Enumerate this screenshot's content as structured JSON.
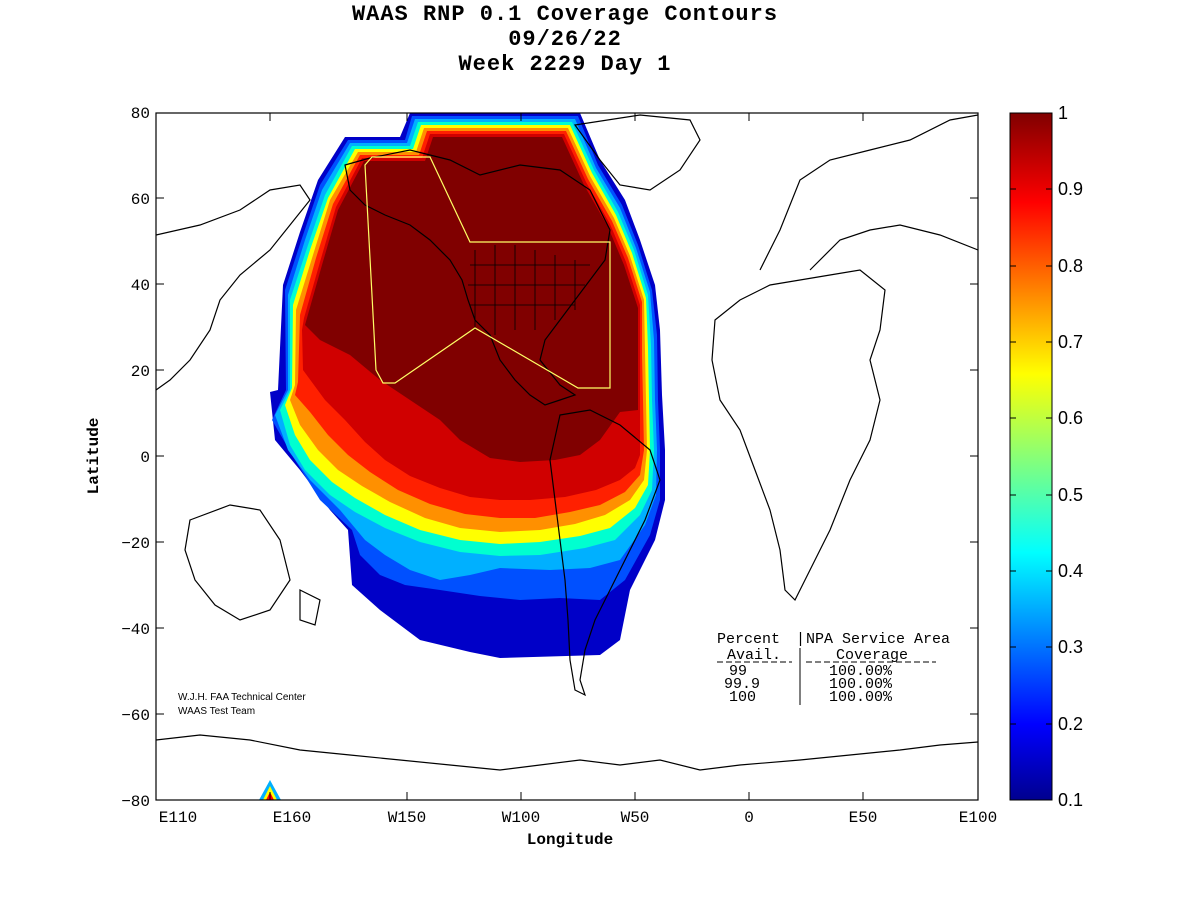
{
  "title": {
    "line1": "WAAS RNP 0.1 Coverage Contours",
    "line2": "09/26/22",
    "line3": "Week 2229 Day 1"
  },
  "axes": {
    "xlabel": "Longitude",
    "ylabel": "Latitude",
    "x_ticks": [
      "E110",
      "E160",
      "W150",
      "W100",
      "W50",
      "0",
      "E50",
      "E100"
    ],
    "y_ticks": [
      "80",
      "60",
      "40",
      "20",
      "0",
      "−20",
      "−40",
      "−60",
      "−80"
    ]
  },
  "colorbar": {
    "ticks": [
      "1",
      "0.9",
      "0.8",
      "0.7",
      "0.6",
      "0.5",
      "0.4",
      "0.3",
      "0.2",
      "0.1"
    ],
    "colormap": "jet",
    "range": [
      0.1,
      1
    ]
  },
  "credit": {
    "line1": "W.J.H. FAA Technical Center",
    "line2": "WAAS Test Team"
  },
  "table": {
    "header_col1": "Percent",
    "header_col2": "NPA Service Area",
    "sub_col1": "Avail.",
    "sub_col2": "Coverage",
    "rows": [
      {
        "avail": "99",
        "coverage": "100.00%"
      },
      {
        "avail": "99.9",
        "coverage": "100.00%"
      },
      {
        "avail": "100",
        "coverage": "100.00%"
      }
    ]
  },
  "colors": {
    "dark_red": "#800000",
    "red": "#ff0000",
    "orange": "#ff8000",
    "yellow": "#ffff00",
    "cyan": "#00ffff",
    "blue": "#0000ff",
    "dark_blue": "#00008f",
    "service_area_outline": "#ffff66"
  }
}
